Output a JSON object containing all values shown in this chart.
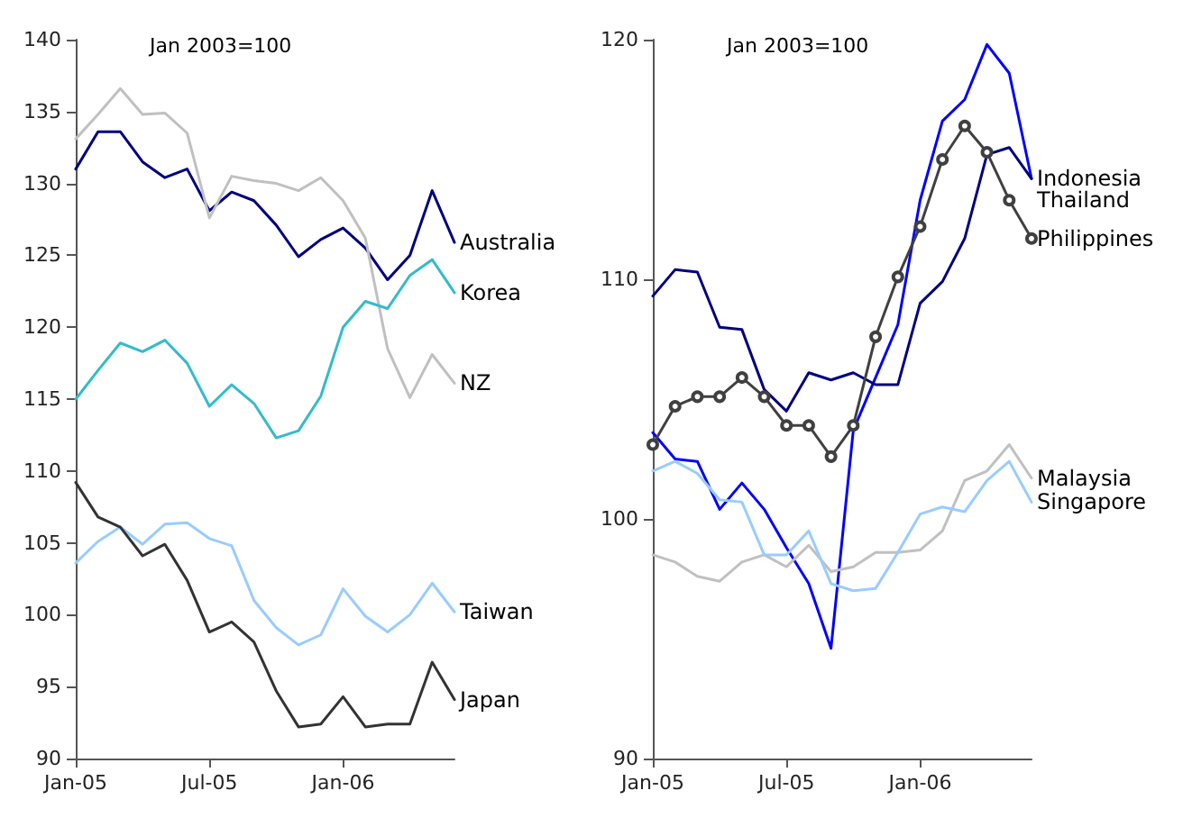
{
  "chart_data": [
    {
      "type": "line",
      "annotations": [
        "Jan 2003=100"
      ],
      "categories": [
        "Jan-05",
        null,
        null,
        null,
        null,
        null,
        "Jul-05",
        null,
        null,
        null,
        null,
        null,
        "Jan-06",
        null,
        null,
        null,
        null,
        null
      ],
      "ylim": [
        90,
        140
      ],
      "yticks": [
        90,
        95,
        100,
        105,
        110,
        115,
        120,
        125,
        130,
        135,
        140
      ],
      "grid": false,
      "legend": false,
      "marker": "none",
      "line_style": "solid",
      "series": [
        {
          "name": "Australia",
          "color": "#000080",
          "values": [
            131.0,
            133.6,
            133.6,
            131.5,
            130.4,
            131.0,
            128.1,
            129.4,
            128.8,
            127.1,
            124.9,
            126.1,
            126.9,
            125.5,
            123.3,
            125.0,
            129.5,
            125.9
          ]
        },
        {
          "name": "NZ",
          "color": "#c0c0c0",
          "values": [
            133.1,
            134.8,
            136.6,
            134.8,
            134.9,
            133.5,
            127.6,
            130.5,
            130.2,
            130.0,
            129.5,
            130.4,
            128.8,
            126.2,
            118.5,
            115.1,
            118.1,
            116.1
          ]
        },
        {
          "name": "Korea",
          "color": "#33bbcc",
          "values": [
            115.0,
            117.0,
            118.9,
            118.3,
            119.1,
            117.5,
            114.5,
            116.0,
            114.7,
            112.3,
            112.8,
            115.2,
            120.0,
            121.8,
            121.3,
            123.6,
            124.7,
            122.4
          ]
        },
        {
          "name": "Taiwan",
          "color": "#99ccff",
          "values": [
            103.6,
            105.1,
            106.1,
            104.9,
            106.3,
            106.4,
            105.3,
            104.8,
            101.0,
            99.1,
            97.9,
            98.6,
            101.8,
            99.9,
            98.8,
            100.0,
            102.2,
            100.2
          ]
        },
        {
          "name": "Japan",
          "color": "#333333",
          "values": [
            109.2,
            106.8,
            106.1,
            104.1,
            104.9,
            102.4,
            98.8,
            99.5,
            98.1,
            94.7,
            92.2,
            92.4,
            94.3,
            92.2,
            92.4,
            92.4,
            96.7,
            94.1
          ]
        }
      ]
    },
    {
      "type": "line",
      "annotations": [
        "Jan 2003=100"
      ],
      "categories": [
        "Jan-05",
        null,
        null,
        null,
        null,
        null,
        "Jul-05",
        null,
        null,
        null,
        null,
        null,
        "Jan-06",
        null,
        null,
        null,
        null,
        null
      ],
      "ylim": [
        90,
        120
      ],
      "yticks": [
        90,
        100,
        110,
        120
      ],
      "grid": false,
      "legend": false,
      "marker": "none",
      "line_style": "solid",
      "series": [
        {
          "name": "Indonesia",
          "color": "#0000ff",
          "values": [
            103.6,
            102.5,
            102.4,
            100.4,
            101.5,
            100.4,
            98.8,
            97.3,
            94.6,
            103.7,
            105.9,
            108.1,
            113.3,
            116.6,
            117.5,
            119.8,
            118.6,
            114.2
          ]
        },
        {
          "name": "Thailand",
          "color": "#000080",
          "values": [
            109.3,
            110.4,
            110.3,
            108.0,
            107.9,
            105.4,
            104.5,
            106.1,
            105.8,
            106.1,
            105.6,
            105.6,
            109.0,
            109.9,
            111.7,
            115.2,
            115.5,
            114.2
          ]
        },
        {
          "name": "Philippines",
          "color": "#404040",
          "marker": "circle",
          "values": [
            103.1,
            104.7,
            105.1,
            105.1,
            105.9,
            105.1,
            103.9,
            103.9,
            102.6,
            103.9,
            107.6,
            110.1,
            112.2,
            115.0,
            116.4,
            115.3,
            113.3,
            111.7
          ]
        },
        {
          "name": "Malaysia",
          "color": "#c0c0c0",
          "values": [
            98.5,
            98.2,
            97.6,
            97.4,
            98.2,
            98.5,
            98.0,
            98.9,
            97.8,
            98.0,
            98.6,
            98.6,
            98.7,
            99.5,
            101.6,
            102.0,
            103.1,
            101.7
          ]
        },
        {
          "name": "Singapore",
          "color": "#99ccff",
          "values": [
            102.0,
            102.4,
            101.9,
            100.8,
            100.7,
            98.5,
            98.5,
            99.5,
            97.3,
            97.0,
            97.1,
            98.6,
            100.2,
            100.5,
            100.3,
            101.6,
            102.4,
            100.7
          ]
        }
      ]
    }
  ]
}
